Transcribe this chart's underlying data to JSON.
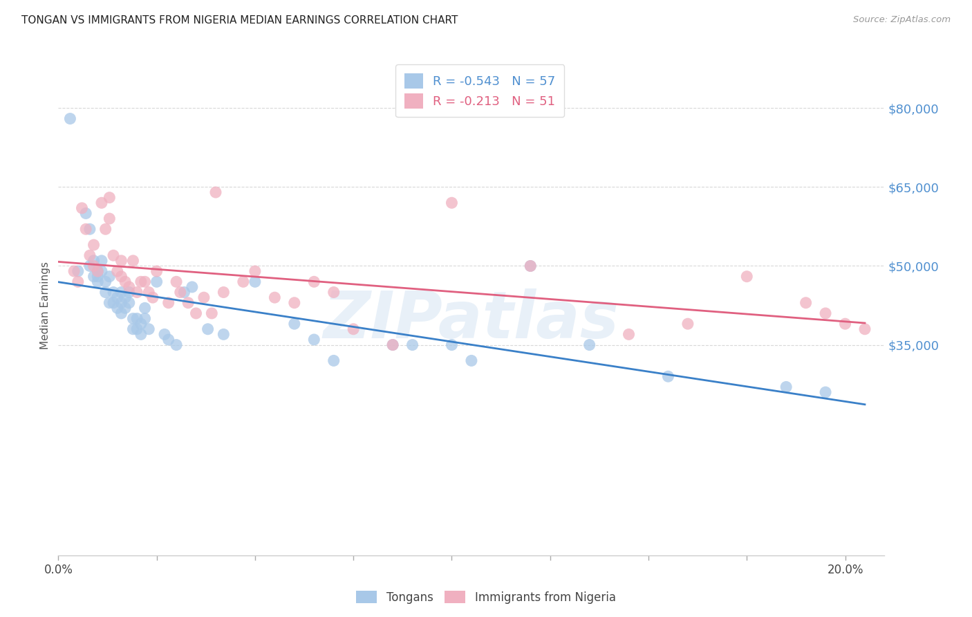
{
  "title": "TONGAN VS IMMIGRANTS FROM NIGERIA MEDIAN EARNINGS CORRELATION CHART",
  "source": "Source: ZipAtlas.com",
  "ylabel": "Median Earnings",
  "watermark": "ZIPatlas",
  "legend_bottom": [
    "Tongans",
    "Immigrants from Nigeria"
  ],
  "r_tongan": -0.543,
  "n_tongan": 57,
  "r_nigeria": -0.213,
  "n_nigeria": 51,
  "xlim": [
    0.0,
    0.21
  ],
  "ylim": [
    -5000,
    90000
  ],
  "yticks": [
    35000,
    50000,
    65000,
    80000
  ],
  "ytick_labels": [
    "$35,000",
    "$50,000",
    "$65,000",
    "$80,000"
  ],
  "xticks": [
    0.0,
    0.025,
    0.05,
    0.075,
    0.1,
    0.125,
    0.15,
    0.175,
    0.2
  ],
  "xtick_labels_show": [
    "0.0%",
    "",
    "",
    "",
    "",
    "",
    "",
    "",
    "20.0%"
  ],
  "blue_scatter_color": "#a8c8e8",
  "pink_scatter_color": "#f0b0c0",
  "blue_line_color": "#3a80c8",
  "pink_line_color": "#e06080",
  "grid_color": "#d8d8d8",
  "background_color": "#ffffff",
  "label_color": "#5090d0",
  "tongan_scatter_x": [
    0.003,
    0.005,
    0.007,
    0.008,
    0.008,
    0.009,
    0.009,
    0.01,
    0.01,
    0.01,
    0.011,
    0.011,
    0.012,
    0.012,
    0.013,
    0.013,
    0.014,
    0.014,
    0.015,
    0.015,
    0.016,
    0.016,
    0.016,
    0.017,
    0.017,
    0.018,
    0.018,
    0.019,
    0.019,
    0.02,
    0.02,
    0.021,
    0.021,
    0.022,
    0.022,
    0.023,
    0.025,
    0.027,
    0.028,
    0.03,
    0.032,
    0.034,
    0.038,
    0.042,
    0.05,
    0.06,
    0.065,
    0.07,
    0.085,
    0.09,
    0.1,
    0.105,
    0.12,
    0.135,
    0.155,
    0.185,
    0.195
  ],
  "tongan_scatter_y": [
    78000,
    49000,
    60000,
    57000,
    50000,
    48000,
    51000,
    49000,
    48000,
    47000,
    51000,
    49000,
    47000,
    45000,
    48000,
    43000,
    45000,
    43000,
    44000,
    42000,
    45000,
    43000,
    41000,
    44000,
    42000,
    45000,
    43000,
    40000,
    38000,
    40000,
    38000,
    39000,
    37000,
    42000,
    40000,
    38000,
    47000,
    37000,
    36000,
    35000,
    45000,
    46000,
    38000,
    37000,
    47000,
    39000,
    36000,
    32000,
    35000,
    35000,
    35000,
    32000,
    50000,
    35000,
    29000,
    27000,
    26000
  ],
  "nigeria_scatter_x": [
    0.004,
    0.005,
    0.006,
    0.007,
    0.008,
    0.009,
    0.009,
    0.01,
    0.011,
    0.012,
    0.013,
    0.013,
    0.014,
    0.015,
    0.016,
    0.016,
    0.017,
    0.018,
    0.019,
    0.02,
    0.021,
    0.022,
    0.023,
    0.024,
    0.025,
    0.028,
    0.03,
    0.031,
    0.033,
    0.035,
    0.037,
    0.039,
    0.04,
    0.042,
    0.047,
    0.05,
    0.055,
    0.06,
    0.065,
    0.07,
    0.075,
    0.085,
    0.1,
    0.12,
    0.145,
    0.16,
    0.175,
    0.19,
    0.195,
    0.2,
    0.205
  ],
  "nigeria_scatter_y": [
    49000,
    47000,
    61000,
    57000,
    52000,
    54000,
    50000,
    49000,
    62000,
    57000,
    63000,
    59000,
    52000,
    49000,
    51000,
    48000,
    47000,
    46000,
    51000,
    45000,
    47000,
    47000,
    45000,
    44000,
    49000,
    43000,
    47000,
    45000,
    43000,
    41000,
    44000,
    41000,
    64000,
    45000,
    47000,
    49000,
    44000,
    43000,
    47000,
    45000,
    38000,
    35000,
    62000,
    50000,
    37000,
    39000,
    48000,
    43000,
    41000,
    39000,
    38000
  ]
}
